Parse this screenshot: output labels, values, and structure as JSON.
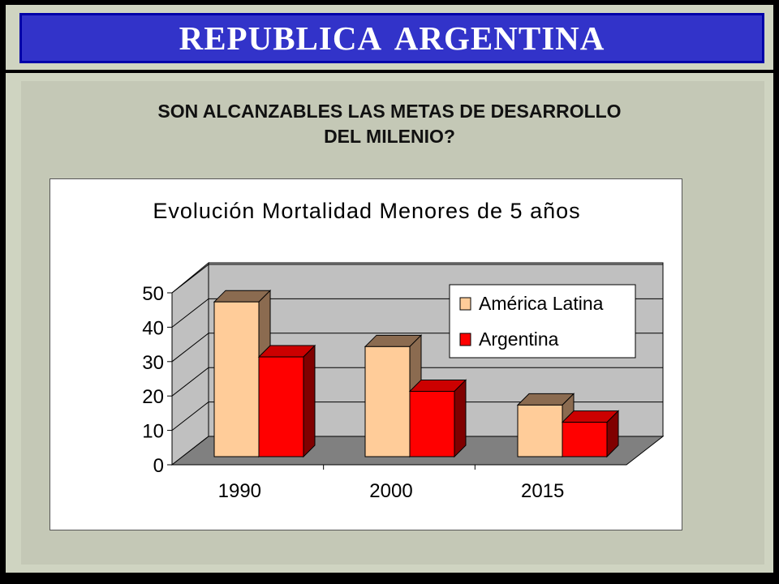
{
  "header": {
    "title": "REPUBLICA  ARGENTINA"
  },
  "question": {
    "line1": "SON ALCANZABLES LAS METAS DE DESARROLLO",
    "line2": "DEL MILENIO?"
  },
  "chart_data": {
    "type": "bar",
    "title": "Evolución Mortalidad Menores de 5 años",
    "categories": [
      "1990",
      "2000",
      "2015"
    ],
    "series": [
      {
        "name": "América Latina",
        "values": [
          45,
          32,
          15
        ],
        "color": "#ffcc99"
      },
      {
        "name": "Argentina",
        "values": [
          29,
          19,
          10
        ],
        "color": "#ff0000"
      }
    ],
    "ylim": [
      0,
      50
    ],
    "yticks": [
      "0",
      "10",
      "20",
      "30",
      "40",
      "50"
    ],
    "grid": true,
    "legend": "top-right",
    "colors": {
      "wall": "#c0c0c0",
      "floor": "#808080",
      "bar1_side": "#8b6b50",
      "bar2_side": "#800000"
    }
  }
}
